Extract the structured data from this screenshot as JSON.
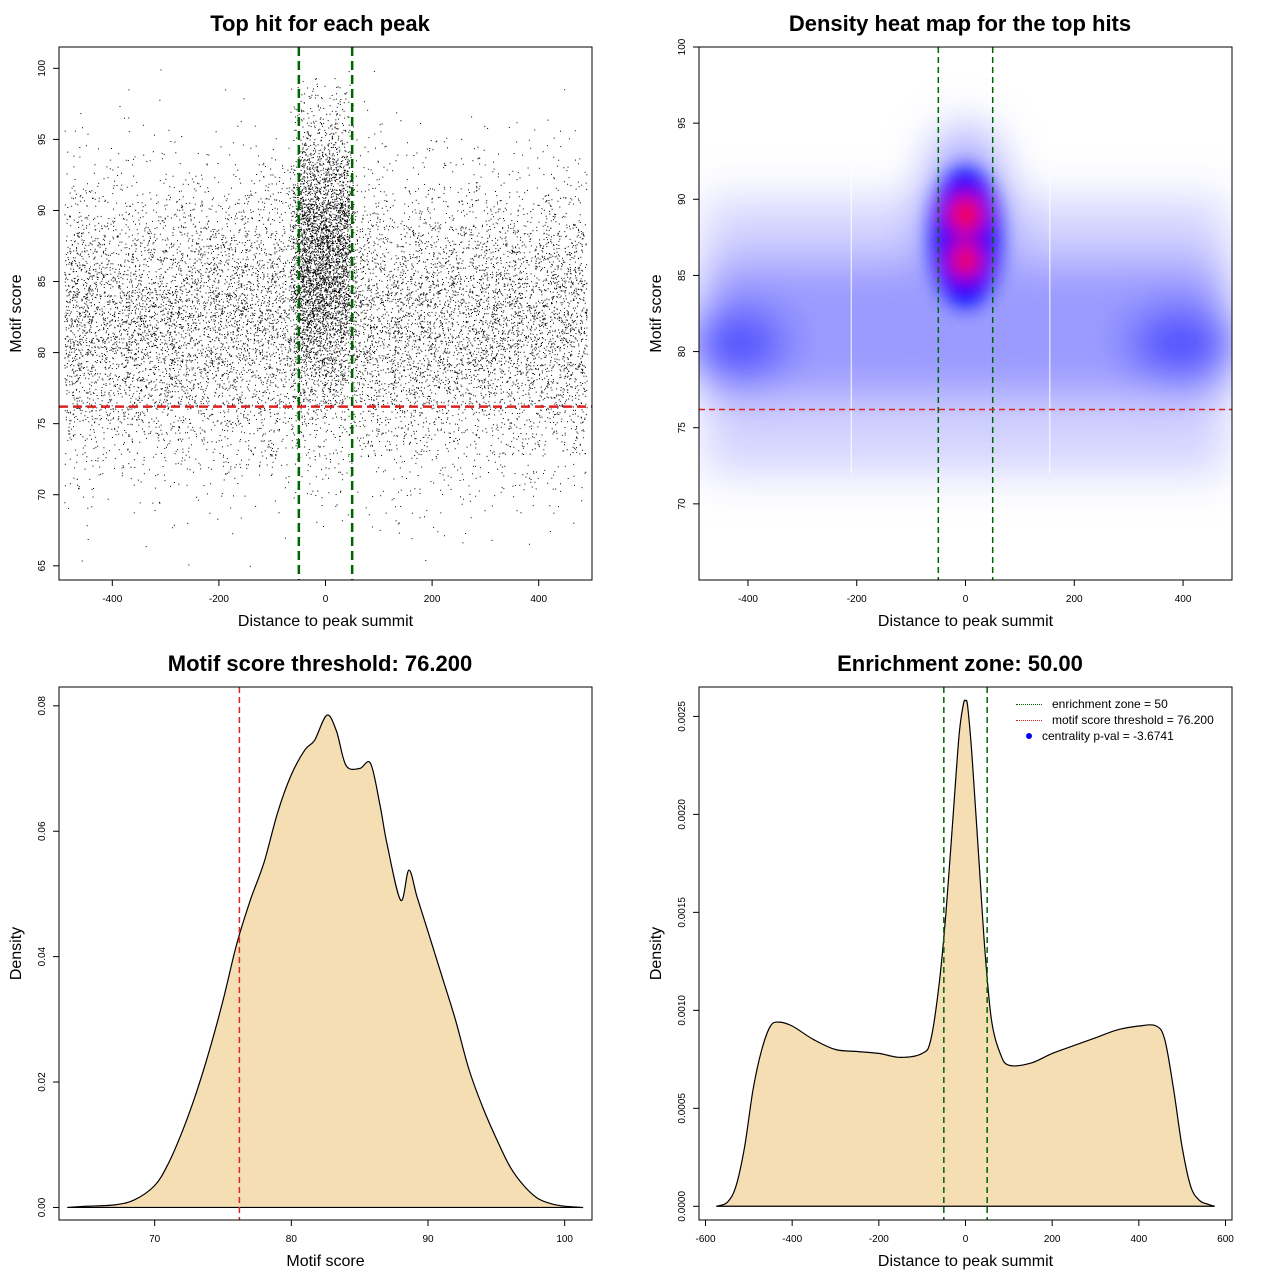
{
  "colors": {
    "green": "#006400",
    "red": "#dd2222",
    "fill": "#f5deb3",
    "point": "#000000",
    "heat_low": "#ffffff",
    "heat_mid": "#0000ff",
    "heat_high": "#ff0000"
  },
  "chart_data": [
    {
      "id": "scatter",
      "type": "scatter",
      "title": "Top hit for each peak",
      "xlabel": "Distance to peak summit",
      "ylabel": "Motif score",
      "xlim": [
        -500,
        500
      ],
      "ylim": [
        64,
        101.5
      ],
      "xticks": [
        -400,
        -200,
        0,
        200,
        400
      ],
      "yticks": [
        65,
        70,
        75,
        80,
        85,
        90,
        95,
        100
      ],
      "vlines": [
        -50,
        50
      ],
      "hline": 76.2,
      "points": {
        "background": {
          "x_range": [
            -490,
            490
          ],
          "y_mean": 82,
          "y_sd": 5
        },
        "central": {
          "x_range": [
            -50,
            50
          ],
          "y_mean": 87.5,
          "y_sd": 4.5
        }
      }
    },
    {
      "id": "heatmap",
      "type": "heatmap",
      "title": "Density heat map for the top hits",
      "xlabel": "Distance to peak summit",
      "ylabel": "Motif score",
      "xlim": [
        -490,
        490
      ],
      "ylim": [
        65,
        100
      ],
      "xticks": [
        -400,
        -200,
        0,
        200,
        400
      ],
      "yticks": [
        70,
        75,
        80,
        85,
        90,
        95,
        100
      ],
      "vlines": [
        -50,
        50
      ],
      "hline": 76.2
    },
    {
      "id": "score_density",
      "type": "area",
      "title": "Motif score threshold: 76.200",
      "xlabel": "Motif score",
      "ylabel": "Density",
      "xlim": [
        63,
        102
      ],
      "ylim": [
        -0.002,
        0.083
      ],
      "xticks": [
        70,
        80,
        90,
        100
      ],
      "yticks": [
        0.0,
        0.02,
        0.04,
        0.06,
        0.08
      ],
      "ytick_labels": [
        "0.00",
        "0.02",
        "0.04",
        "0.06",
        "0.08"
      ],
      "vline": 76.2,
      "x": [
        63.6,
        65,
        67,
        68.5,
        70,
        71,
        72,
        73,
        74,
        75,
        76,
        77,
        78,
        79,
        80,
        81,
        81.7,
        82.6,
        83.3,
        84,
        85,
        85.8,
        86.5,
        87,
        88,
        88.6,
        89.2,
        90,
        91,
        92,
        93,
        94,
        95,
        96,
        97,
        98,
        99,
        100,
        101.3
      ],
      "y": [
        0.0,
        0.0002,
        0.0004,
        0.0012,
        0.0035,
        0.007,
        0.012,
        0.018,
        0.025,
        0.033,
        0.042,
        0.049,
        0.055,
        0.063,
        0.069,
        0.073,
        0.0745,
        0.0785,
        0.076,
        0.0705,
        0.07,
        0.0708,
        0.064,
        0.058,
        0.049,
        0.0538,
        0.0495,
        0.044,
        0.037,
        0.03,
        0.022,
        0.016,
        0.011,
        0.0065,
        0.0035,
        0.0015,
        0.0006,
        0.0002,
        0.0
      ]
    },
    {
      "id": "distance_density",
      "type": "area",
      "title": "Enrichment zone: 50.00",
      "xlabel": "Distance to peak summit",
      "ylabel": "Density",
      "xlim": [
        -615,
        615
      ],
      "ylim": [
        -7e-05,
        0.00265
      ],
      "xticks": [
        -600,
        -400,
        -200,
        0,
        200,
        400,
        600
      ],
      "yticks": [
        0.0,
        0.0005,
        0.001,
        0.0015,
        0.002,
        0.0025
      ],
      "ytick_labels": [
        "0.0000",
        "0.0005",
        "0.0010",
        "0.0015",
        "0.0020",
        "0.0025"
      ],
      "vlines": [
        -50,
        50
      ],
      "x": [
        -575,
        -550,
        -530,
        -510,
        -490,
        -470,
        -450,
        -430,
        -400,
        -350,
        -300,
        -250,
        -200,
        -150,
        -100,
        -80,
        -60,
        -45,
        -30,
        -15,
        -5,
        0,
        5,
        15,
        30,
        45,
        60,
        80,
        100,
        150,
        200,
        250,
        300,
        350,
        400,
        440,
        460,
        480,
        500,
        520,
        540,
        560,
        575
      ],
      "y": [
        0.0,
        2e-05,
        0.0001,
        0.0003,
        0.0006,
        0.0008,
        0.00092,
        0.00094,
        0.00092,
        0.00085,
        0.0008,
        0.00079,
        0.00078,
        0.00076,
        0.00078,
        0.00085,
        0.00115,
        0.0015,
        0.00195,
        0.0024,
        0.00256,
        0.00258,
        0.00255,
        0.0023,
        0.0018,
        0.0013,
        0.00095,
        0.00078,
        0.00072,
        0.00073,
        0.00078,
        0.00082,
        0.00086,
        0.0009,
        0.00092,
        0.00092,
        0.00085,
        0.0006,
        0.0003,
        0.0001,
        3e-05,
        1e-05,
        0.0
      ],
      "legend": [
        {
          "label": "enrichment zone = 50",
          "color": "#006400",
          "style": "dotted"
        },
        {
          "label": "motif score threshold = 76.200",
          "color": "#dd2222",
          "style": "dotted"
        },
        {
          "label": "centrality p-val = -3.6741",
          "color": "#0000ff",
          "style": "dot"
        }
      ]
    }
  ]
}
